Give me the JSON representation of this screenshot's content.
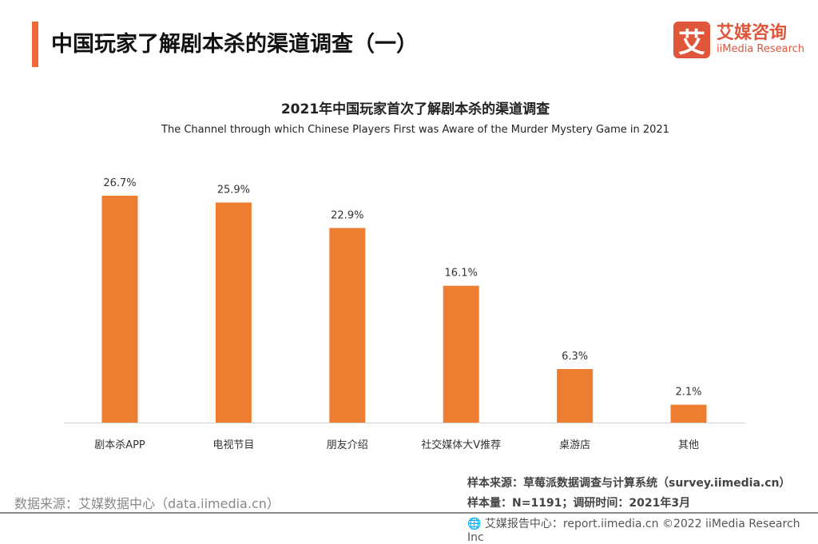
{
  "header": {
    "title": "中国玩家了解剧本杀的渠道调查（一）",
    "logo_mark": "艾",
    "logo_cn": "艾媒咨询",
    "logo_en": "iiMedia Research"
  },
  "chart_data": {
    "type": "bar",
    "title": "2021年中国玩家首次了解剧本杀的渠道调查",
    "subtitle": "The Channel through which Chinese Players First was Aware of the Murder Mystery Game in 2021",
    "categories": [
      "剧本杀APP",
      "电视节目",
      "朋友介绍",
      "社交媒体大V推荐",
      "桌游店",
      "其他"
    ],
    "values": [
      26.7,
      25.9,
      22.9,
      16.1,
      6.3,
      2.1
    ],
    "labels": [
      "26.7%",
      "25.9%",
      "22.9%",
      "16.1%",
      "6.3%",
      "2.1%"
    ],
    "ylim": [
      0,
      30
    ],
    "color": "#ed7d31",
    "grid": false
  },
  "footer": {
    "source": "数据来源：艾媒数据中心（data.iimedia.cn）",
    "sample_source": "样本来源：草莓派数据调查与计算系统（survey.iimedia.cn）",
    "sample_size": "样本量：N=1191；调研时间：2021年3月",
    "report": "艾媒报告中心：report.iimedia.cn   ©2022  iiMedia Research  Inc"
  }
}
